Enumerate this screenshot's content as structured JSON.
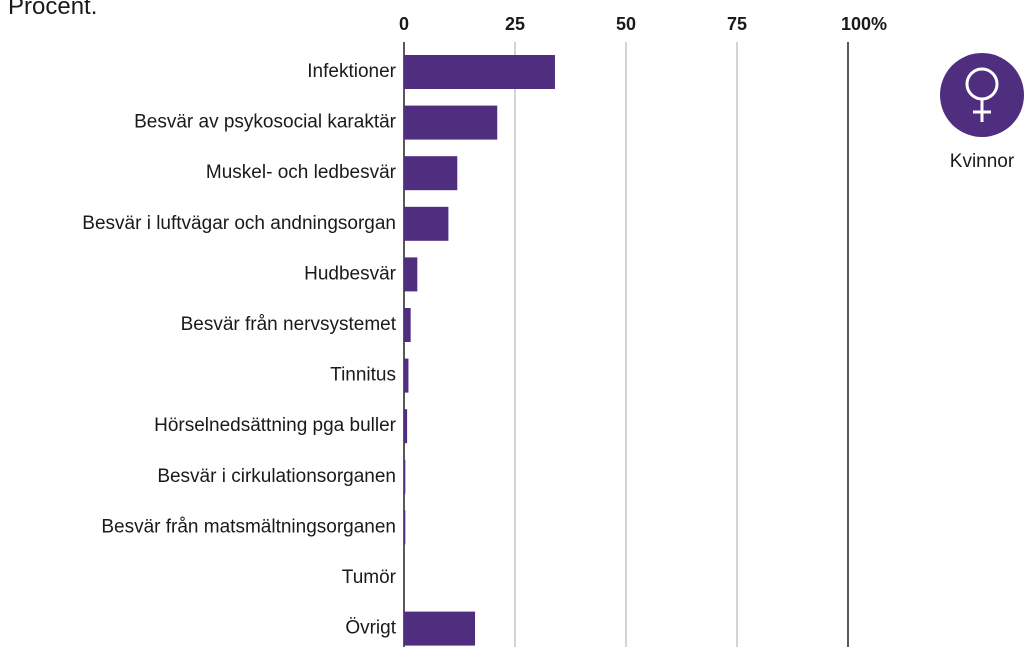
{
  "chart_data": {
    "type": "bar",
    "orientation": "horizontal",
    "title": "Procent.",
    "categories": [
      "Infektioner",
      "Besvär av psykosocial karaktär",
      "Muskel- och ledbesvär",
      "Besvär i luftvägar och andningsorgan",
      "Hudbesvär",
      "Besvär från nervsystemet",
      "Tinnitus",
      "Hörselnedsättning pga buller",
      "Besvär i cirkulationsorganen",
      "Besvär från matsmältningsorganen",
      "Tumör",
      "Övrigt"
    ],
    "series": [
      {
        "name": "Kvinnor",
        "color": "#4f2d7f",
        "values": [
          34,
          21,
          12,
          10,
          3,
          1.5,
          1,
          0.7,
          0.3,
          0.3,
          0,
          16
        ]
      }
    ],
    "xlim": [
      0,
      100
    ],
    "xticks": [
      0,
      25,
      50,
      75,
      {
        "value": 100,
        "label": "100%"
      }
    ],
    "grid": true
  }
}
